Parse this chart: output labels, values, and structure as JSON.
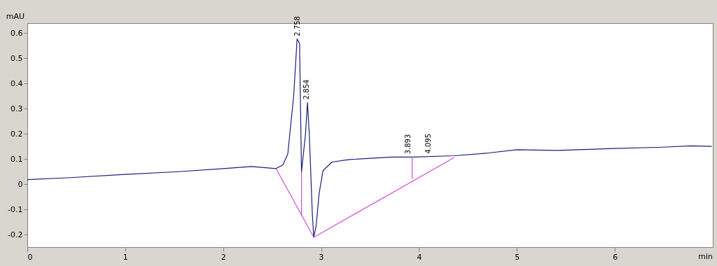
{
  "chart_data": {
    "type": "line",
    "xlabel": "min",
    "ylabel": "mAU",
    "xlim": [
      0,
      7
    ],
    "ylim": [
      -0.25,
      0.64
    ],
    "xticks": [
      0,
      1,
      2,
      3,
      4,
      5,
      6
    ],
    "yticks": [
      -0.2,
      -0.1,
      0,
      0.1,
      0.2,
      0.3,
      0.4,
      0.5,
      0.6
    ],
    "grid": false,
    "marker": "none",
    "line_style": "solid",
    "series": [
      {
        "color": "#1c1c78",
        "x": [
          0,
          0.44,
          1.0,
          1.51,
          2.0,
          2.29,
          2.54,
          2.61,
          2.66,
          2.72,
          2.755,
          2.78,
          2.8,
          2.84,
          2.861,
          2.88,
          2.91,
          2.925,
          2.95,
          2.98,
          3.02,
          3.11,
          3.29,
          3.72,
          3.94,
          4.36,
          4.71,
          5.0,
          5.42,
          5.99,
          6.49,
          6.78,
          6.99
        ],
        "values": [
          0.018,
          0.026,
          0.039,
          0.049,
          0.062,
          0.07,
          0.062,
          0.077,
          0.12,
          0.35,
          0.577,
          0.56,
          0.049,
          0.196,
          0.325,
          0.196,
          -0.113,
          -0.211,
          -0.165,
          -0.036,
          0.054,
          0.088,
          0.098,
          0.108,
          0.108,
          0.113,
          0.124,
          0.137,
          0.134,
          0.142,
          0.147,
          0.152,
          0.15
        ]
      },
      {
        "color": "#d24fd2",
        "x": [
          2.54,
          2.925,
          4.36
        ],
        "values": [
          0.062,
          -0.211,
          0.106
        ]
      },
      {
        "color": "#d24fd2",
        "x": [
          2.8,
          2.8
        ],
        "values": [
          0.049,
          -0.126
        ]
      },
      {
        "color": "#d24fd2",
        "x": [
          3.93,
          3.93
        ],
        "values": [
          0.108,
          0.021
        ]
      }
    ],
    "annotations": [
      {
        "text": "2.758",
        "x": 2.758,
        "y": 0.577
      },
      {
        "text": "2.854",
        "x": 2.854,
        "y": 0.325
      },
      {
        "text": "3.893",
        "x": 3.893,
        "y": 0.108
      },
      {
        "text": "4.095",
        "x": 4.095,
        "y": 0.11
      }
    ]
  }
}
